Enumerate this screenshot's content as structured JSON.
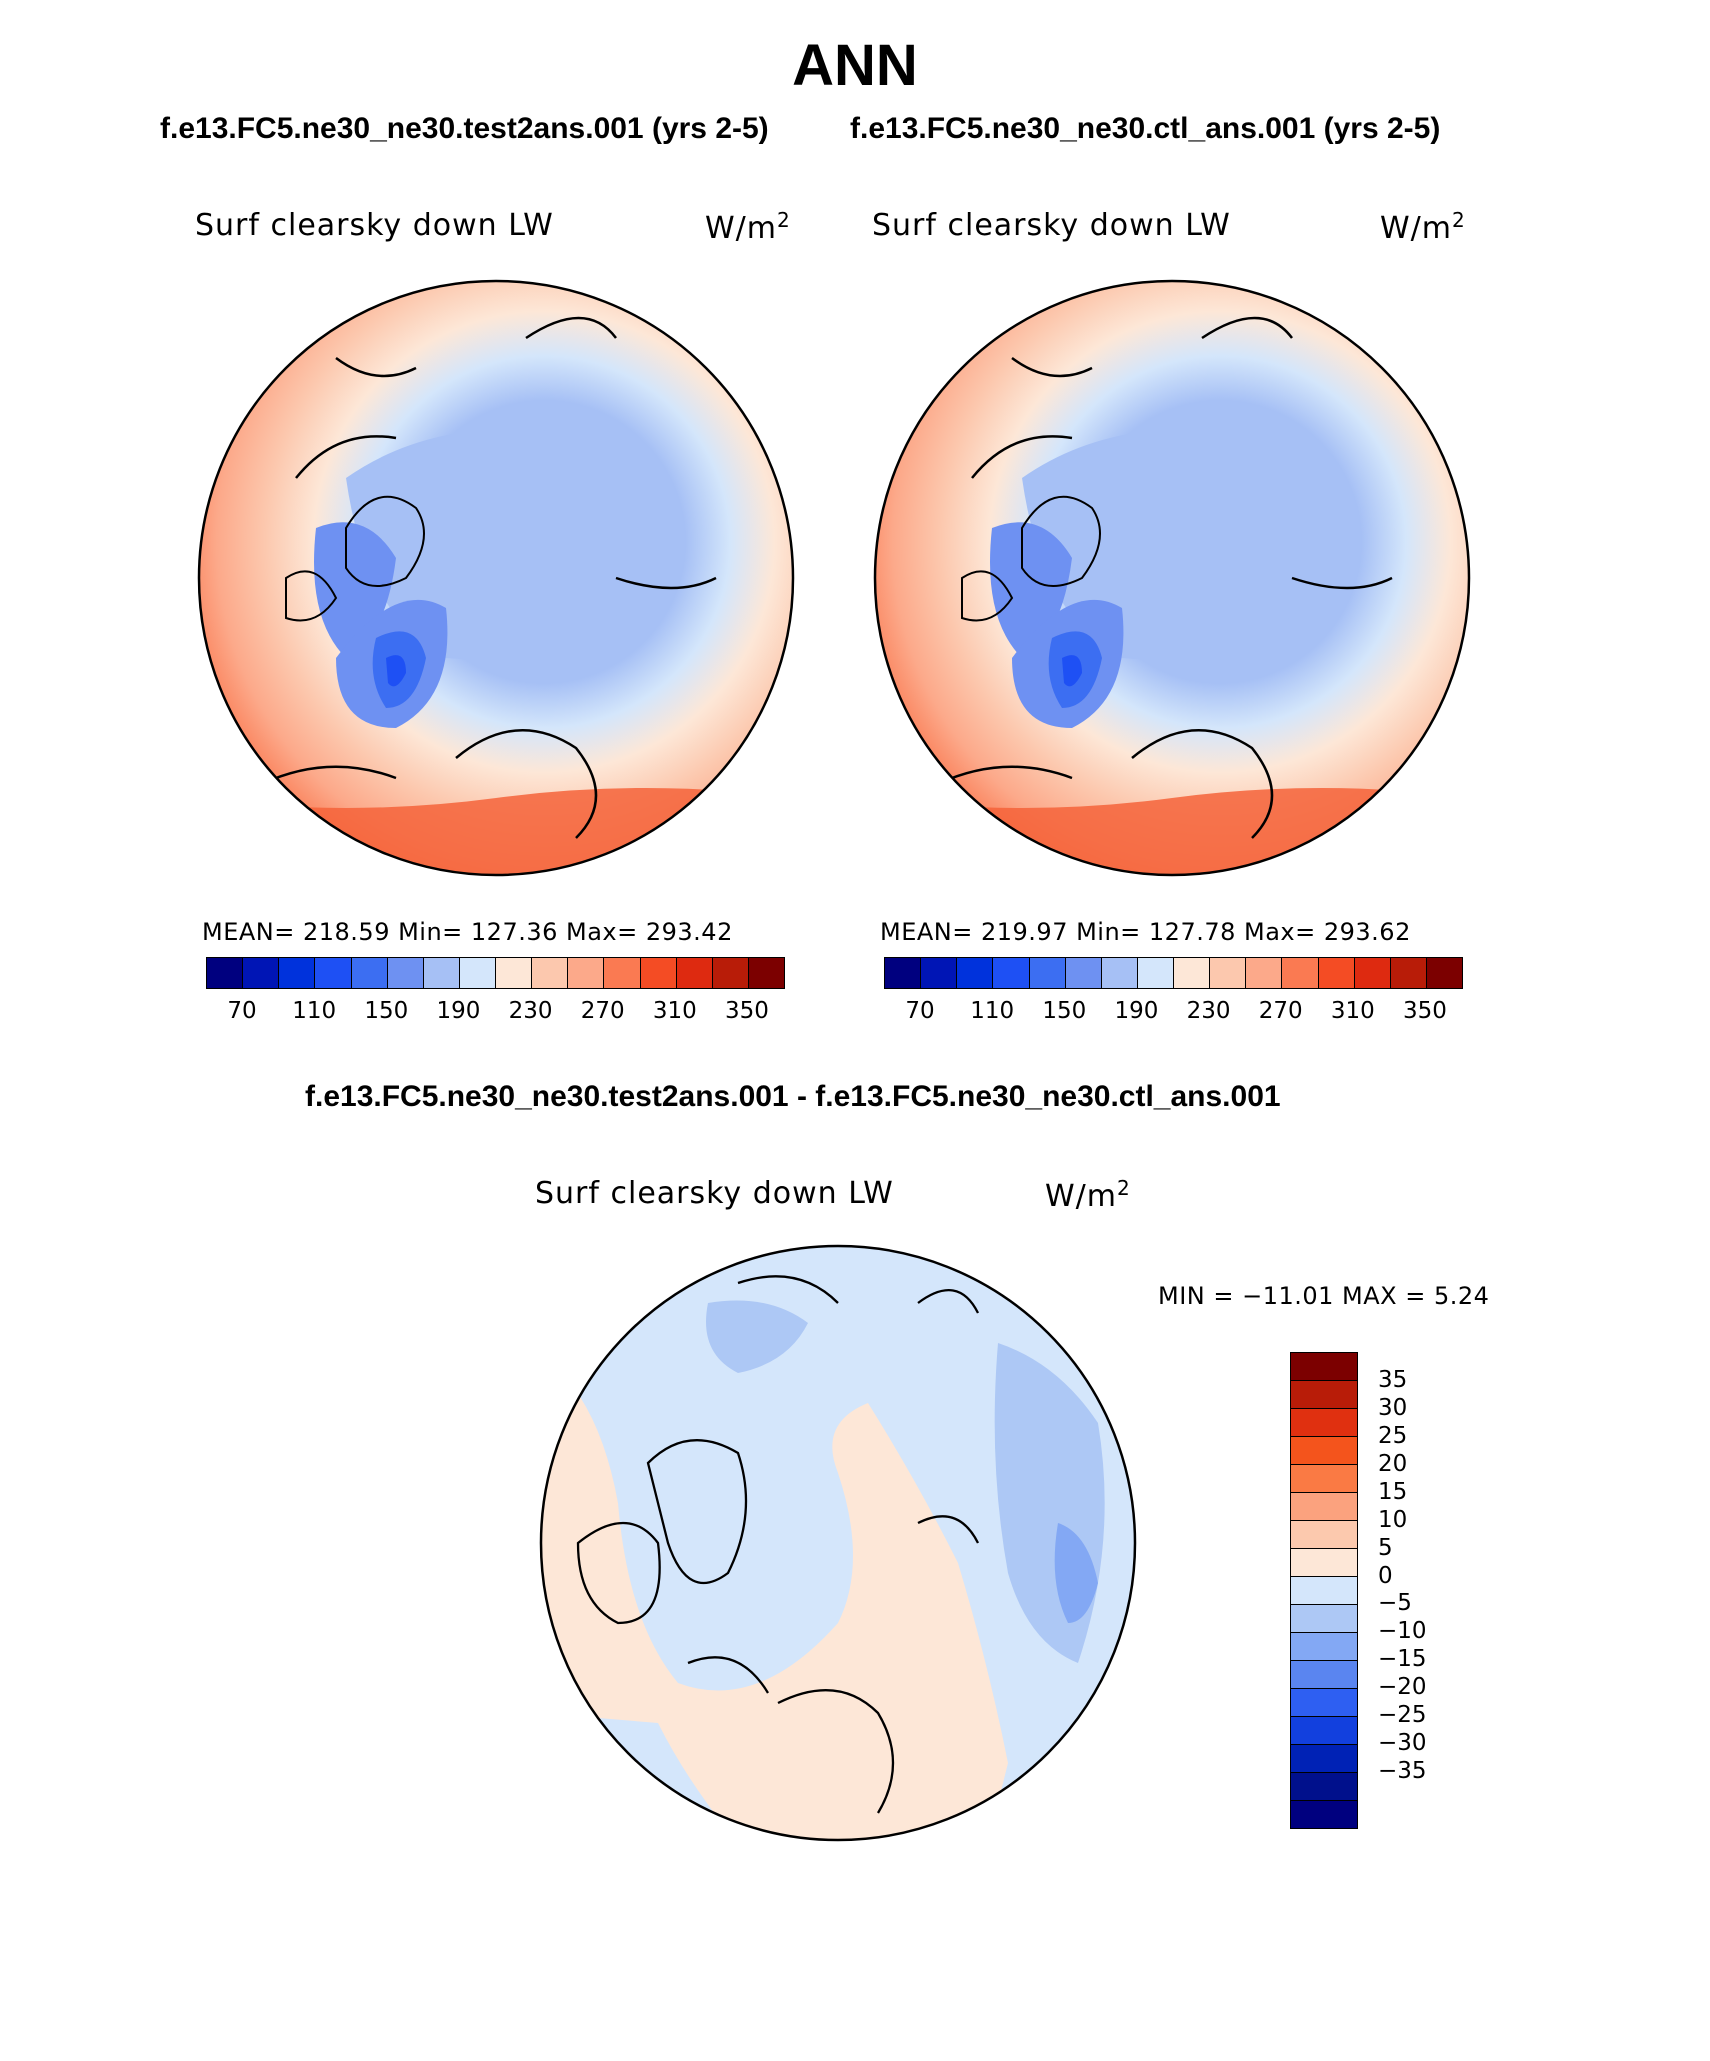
{
  "figure": {
    "season": "ANN",
    "test_case": "f.e13.FC5.ne30_ne30.test2ans.001 (yrs 2-5)",
    "control_case": "f.e13.FC5.ne30_ne30.ctl_ans.001 (yrs 2-5)",
    "diff_title": "f.e13.FC5.ne30_ne30.test2ans.001 - f.e13.FC5.ne30_ne30.ctl_ans.001"
  },
  "panels": {
    "test": {
      "variable": "Surf clearsky down LW",
      "units": "W/m",
      "units_exp": "2",
      "stats": "MEAN= 218.59   Min= 127.36   Max= 293.42"
    },
    "control": {
      "variable": "Surf clearsky down LW",
      "units": "W/m",
      "units_exp": "2",
      "stats": "MEAN= 219.97   Min= 127.78   Max= 293.62"
    },
    "diff": {
      "variable": "Surf clearsky down LW",
      "units": "W/m",
      "units_exp": "2",
      "stats": "MIN = −11.01 MAX =    5.24"
    }
  },
  "abs_colorbar": {
    "colors": [
      "#00007f",
      "#0015b5",
      "#0032dc",
      "#1e50f4",
      "#3c6ef2",
      "#6e91f2",
      "#a6c0f5",
      "#d4e6fb",
      "#fde7d7",
      "#fcc8ae",
      "#fca98a",
      "#fa7a52",
      "#f44c24",
      "#de2a10",
      "#b81c08",
      "#7c0000"
    ],
    "tick_labels": [
      "70",
      "110",
      "150",
      "190",
      "230",
      "270",
      "310",
      "350"
    ]
  },
  "diff_colorbar": {
    "colors": [
      "#7c0000",
      "#b81c08",
      "#e03010",
      "#f4541c",
      "#fa7a44",
      "#fba27e",
      "#fcc9ae",
      "#fde7d7",
      "#d4e6fb",
      "#adc8f5",
      "#83a8f4",
      "#5a85f0",
      "#2e5ff2",
      "#1240de",
      "#0022b5",
      "#00108c",
      "#00007f"
    ],
    "tick_labels": [
      "35",
      "30",
      "25",
      "20",
      "15",
      "10",
      "5",
      "0",
      "−5",
      "−10",
      "−15",
      "−20",
      "−25",
      "−30",
      "−35"
    ]
  }
}
